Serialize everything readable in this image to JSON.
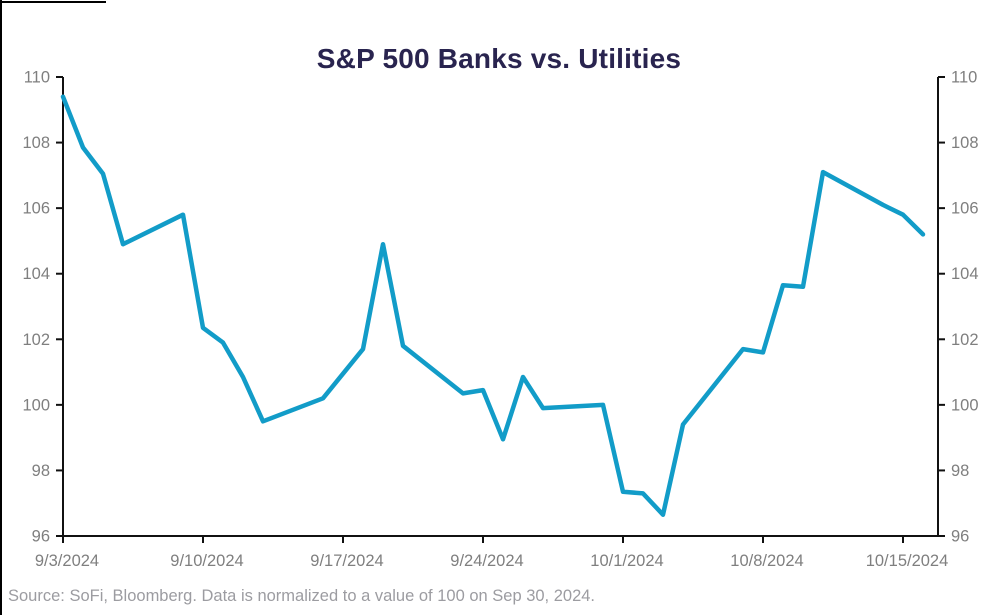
{
  "title": "S&P 500 Banks vs. Utilities",
  "source_note": "Source: SoFi, Bloomberg. Data is normalized to a value of 100 on Sep 30, 2024.",
  "colors": {
    "line": "#129CC8",
    "title_text": "#29244F",
    "tick_text": "#7F7F7F",
    "source_text": "#9C9CA1",
    "axis": "#111111"
  },
  "chart_data": {
    "type": "line",
    "title": "S&P 500 Banks vs. Utilities",
    "xlabel": "",
    "ylabel": "",
    "ylim": [
      96,
      110
    ],
    "y_ticks": [
      96,
      98,
      100,
      102,
      104,
      106,
      108,
      110
    ],
    "y_axis_sides": [
      "left",
      "right"
    ],
    "grid": false,
    "legend": "none",
    "x_domain_days": [
      0,
      43.75
    ],
    "x_ticks": [
      {
        "day": 0,
        "label": "9/3/2024"
      },
      {
        "day": 7,
        "label": "9/10/2024"
      },
      {
        "day": 14,
        "label": "9/17/2024"
      },
      {
        "day": 21,
        "label": "9/24/2024"
      },
      {
        "day": 28,
        "label": "10/1/2024"
      },
      {
        "day": 35,
        "label": "10/8/2024"
      },
      {
        "day": 42,
        "label": "10/15/2024"
      }
    ],
    "series": [
      {
        "name": "S&P 500 Banks vs. Utilities (normalized to 100 on Sep 30, 2024)",
        "x_dates": [
          "9/3/2024",
          "9/4/2024",
          "9/5/2024",
          "9/6/2024",
          "9/9/2024",
          "9/10/2024",
          "9/11/2024",
          "9/12/2024",
          "9/13/2024",
          "9/16/2024",
          "9/17/2024",
          "9/18/2024",
          "9/19/2024",
          "9/20/2024",
          "9/23/2024",
          "9/24/2024",
          "9/25/2024",
          "9/26/2024",
          "9/27/2024",
          "9/30/2024",
          "10/1/2024",
          "10/2/2024",
          "10/3/2024",
          "10/4/2024",
          "10/7/2024",
          "10/8/2024",
          "10/9/2024",
          "10/10/2024",
          "10/11/2024",
          "10/14/2024",
          "10/15/2024",
          "10/16/2024"
        ],
        "x_day_offsets": [
          0,
          1,
          2,
          3,
          6,
          7,
          8,
          9,
          10,
          13,
          14,
          15,
          16,
          17,
          20,
          21,
          22,
          23,
          24,
          27,
          28,
          29,
          30,
          31,
          34,
          35,
          36,
          37,
          38,
          41,
          42,
          43
        ],
        "values": [
          109.4,
          107.85,
          107.05,
          104.9,
          105.8,
          102.35,
          101.9,
          100.85,
          99.5,
          100.2,
          100.95,
          101.7,
          104.9,
          101.8,
          100.35,
          100.45,
          98.95,
          100.85,
          99.9,
          100.0,
          97.35,
          97.3,
          96.65,
          99.4,
          101.7,
          101.6,
          103.65,
          103.6,
          107.1,
          106.1,
          105.8,
          105.2
        ]
      }
    ]
  }
}
